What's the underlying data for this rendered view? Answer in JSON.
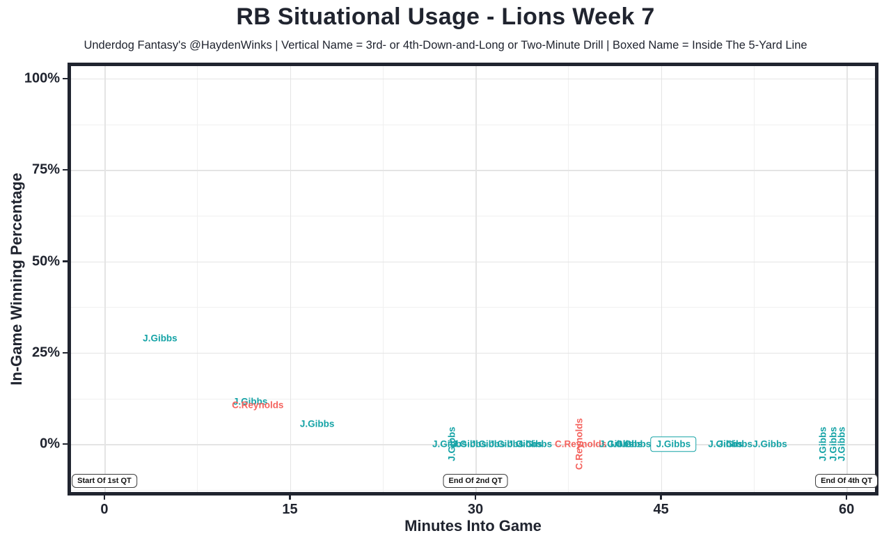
{
  "colors": {
    "gibbs_teal": "#15A3A6",
    "reynolds_red": "#F4635E",
    "axis_dark": "#20242f",
    "grid_major": "#e4e4e4",
    "grid_minor": "#f0f0f0",
    "annotation_border": "#3c3c3c"
  },
  "chart_data": {
    "type": "scatter",
    "title": "RB Situational Usage - Lions Week 7",
    "subtitle": "Underdog Fantasy's @HaydenWinks | Vertical Name = 3rd- or 4th-Down-and-Long or Two-Minute Drill | Boxed Name = Inside The 5-Yard Line",
    "xlabel": "Minutes Into Game",
    "ylabel": "In-Game Winning Percentage",
    "grid": true,
    "legend": "none",
    "x_axis": {
      "range": [
        -2.7,
        62.3
      ],
      "ticks": [
        0,
        15,
        30,
        45,
        60
      ],
      "tick_labels": [
        "0",
        "15",
        "30",
        "45",
        "60"
      ],
      "minor_ticks": [
        7.5,
        22.5,
        37.5,
        52.5
      ]
    },
    "y_axis": {
      "range": [
        -13.1,
        103.4
      ],
      "ticks": [
        0,
        25,
        50,
        75,
        100
      ],
      "tick_labels": [
        "0%",
        "25%",
        "50%",
        "75%",
        "100%"
      ],
      "minor_ticks": [
        -12.5,
        12.5,
        37.5,
        62.5,
        87.5
      ]
    },
    "series": [
      {
        "name": "J.Gibbs",
        "color": "#15A3A6"
      },
      {
        "name": "C.Reynolds",
        "color": "#F4635E"
      }
    ],
    "points": [
      {
        "player": "J.Gibbs",
        "minutes": 4.5,
        "win_pct": 29.0,
        "orientation": "horizontal",
        "boxed": false
      },
      {
        "player": "J.Gibbs",
        "minutes": 11.8,
        "win_pct": 11.7,
        "orientation": "horizontal",
        "boxed": false
      },
      {
        "player": "C.Reynolds",
        "minutes": 12.4,
        "win_pct": 10.7,
        "orientation": "horizontal",
        "boxed": false
      },
      {
        "player": "J.Gibbs",
        "minutes": 17.2,
        "win_pct": 5.5,
        "orientation": "horizontal",
        "boxed": false
      },
      {
        "player": "J.Gibbs",
        "minutes": 27.9,
        "win_pct": 0,
        "orientation": "horizontal",
        "boxed": false
      },
      {
        "player": "J.Gibbs",
        "minutes": 28.1,
        "win_pct": 0,
        "orientation": "vertical",
        "boxed": false
      },
      {
        "player": "J.Gibbs",
        "minutes": 29.5,
        "win_pct": 0,
        "orientation": "horizontal",
        "boxed": false
      },
      {
        "player": "J.Gibbs",
        "minutes": 31.0,
        "win_pct": 0,
        "orientation": "horizontal",
        "boxed": false
      },
      {
        "player": "J.Gibbs",
        "minutes": 32.5,
        "win_pct": 0,
        "orientation": "horizontal",
        "boxed": false
      },
      {
        "player": "J.Gibbs",
        "minutes": 34.0,
        "win_pct": 0,
        "orientation": "horizontal",
        "boxed": false
      },
      {
        "player": "J.Gibbs",
        "minutes": 34.8,
        "win_pct": 0,
        "orientation": "horizontal",
        "boxed": false
      },
      {
        "player": "C.Reynolds",
        "minutes": 38.5,
        "win_pct": 0,
        "orientation": "horizontal",
        "boxed": false
      },
      {
        "player": "C.Reynolds",
        "minutes": 38.4,
        "win_pct": 0,
        "orientation": "vertical",
        "boxed": false
      },
      {
        "player": "J.Gibbs",
        "minutes": 41.4,
        "win_pct": 0,
        "orientation": "horizontal",
        "boxed": false
      },
      {
        "player": "J.Gibbs",
        "minutes": 42.1,
        "win_pct": 0,
        "orientation": "horizontal",
        "boxed": false
      },
      {
        "player": "J.Gibbs",
        "minutes": 42.8,
        "win_pct": 0,
        "orientation": "horizontal",
        "boxed": false
      },
      {
        "player": "J.Gibbs",
        "minutes": 46.0,
        "win_pct": 0,
        "orientation": "horizontal",
        "boxed": true
      },
      {
        "player": "J.Gibbs",
        "minutes": 50.2,
        "win_pct": 0,
        "orientation": "horizontal",
        "boxed": false
      },
      {
        "player": "J.Gibbs",
        "minutes": 51.0,
        "win_pct": 0,
        "orientation": "horizontal",
        "boxed": false
      },
      {
        "player": "J.Gibbs",
        "minutes": 53.8,
        "win_pct": 0,
        "orientation": "horizontal",
        "boxed": false
      },
      {
        "player": "J.Gibbs",
        "minutes": 58.1,
        "win_pct": 0,
        "orientation": "vertical",
        "boxed": false
      },
      {
        "player": "J.Gibbs",
        "minutes": 58.9,
        "win_pct": 0,
        "orientation": "vertical",
        "boxed": false
      },
      {
        "player": "J.Gibbs",
        "minutes": 59.6,
        "win_pct": 0,
        "orientation": "vertical",
        "boxed": false
      }
    ],
    "annotations": [
      {
        "label": "Start Of 1st QT",
        "minutes": 0,
        "win_pct": -10.1
      },
      {
        "label": "End Of 2nd QT",
        "minutes": 30,
        "win_pct": -10.1
      },
      {
        "label": "End Of 4th QT",
        "minutes": 60,
        "win_pct": -10.1
      }
    ]
  }
}
